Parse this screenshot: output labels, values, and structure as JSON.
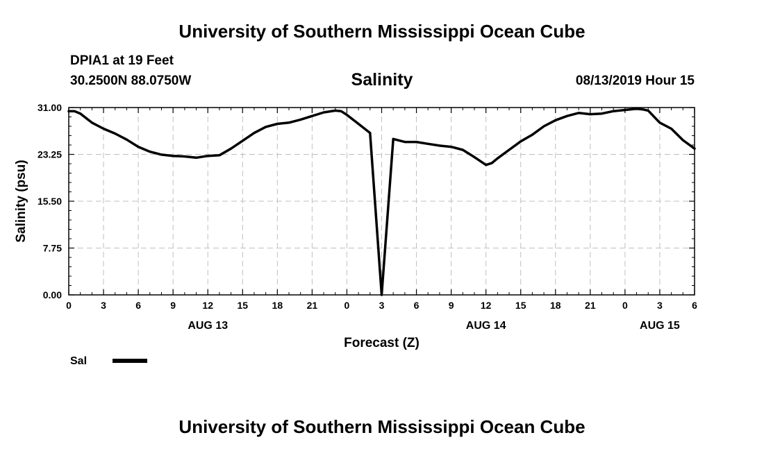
{
  "header": {
    "title": "University of Southern Mississippi Ocean Cube",
    "station": "DPIA1 at 19 Feet",
    "coordinates": "30.2500N 88.0750W",
    "variable": "Salinity",
    "timestamp": "08/13/2019 Hour 15"
  },
  "footer": {
    "title": "University of Southern Mississippi Ocean Cube"
  },
  "colors": {
    "line": "#000000",
    "grid": "#bfbfbf",
    "background": "#ffffff"
  },
  "chart_data": {
    "type": "line",
    "title": "Salinity",
    "xlabel": "Forecast (Z)",
    "ylabel": "Salinity (psu)",
    "xlim": [
      0,
      54
    ],
    "ylim": [
      0,
      31
    ],
    "x_tick_values": [
      0,
      3,
      6,
      9,
      12,
      15,
      18,
      21,
      24,
      27,
      30,
      33,
      36,
      39,
      42,
      45,
      48,
      51,
      54
    ],
    "x_tick_labels": [
      "0",
      "3",
      "6",
      "9",
      "12",
      "15",
      "18",
      "21",
      "0",
      "3",
      "6",
      "9",
      "12",
      "15",
      "18",
      "21",
      "0",
      "3",
      "6"
    ],
    "y_tick_values": [
      0,
      7.75,
      15.5,
      23.25,
      31
    ],
    "y_tick_labels": [
      "0.00",
      "7.75",
      "15.50",
      "23.25",
      "31.00"
    ],
    "date_labels": [
      {
        "x": 12,
        "label": "AUG 13"
      },
      {
        "x": 36,
        "label": "AUG 14"
      },
      {
        "x": 51,
        "label": "AUG 15"
      }
    ],
    "grid": true,
    "legend": {
      "position": "bottom-left",
      "entries": [
        {
          "name": "Sal"
        }
      ]
    },
    "series": [
      {
        "name": "Sal",
        "x": [
          0,
          0.5,
          1,
          2,
          3,
          4,
          5,
          6,
          7,
          8,
          9,
          10,
          11,
          12,
          13,
          14,
          15,
          16,
          17,
          18,
          19,
          20,
          21,
          22,
          23,
          23.5,
          24,
          25,
          26,
          27,
          28,
          29,
          30,
          31,
          32,
          33,
          34,
          35,
          36,
          36.5,
          37,
          38,
          39,
          40,
          41,
          42,
          43,
          44,
          45,
          46,
          47,
          48,
          49,
          49.5,
          50,
          51,
          52,
          53,
          54
        ],
        "values": [
          30.4,
          30.4,
          30.0,
          28.5,
          27.5,
          26.7,
          25.7,
          24.5,
          23.7,
          23.2,
          23.0,
          22.9,
          22.7,
          23.0,
          23.1,
          24.2,
          25.5,
          26.8,
          27.8,
          28.3,
          28.5,
          29.0,
          29.6,
          30.2,
          30.5,
          30.4,
          29.8,
          28.3,
          26.8,
          0.0,
          25.8,
          25.3,
          25.3,
          25.0,
          24.7,
          24.5,
          24.0,
          22.8,
          21.5,
          21.8,
          22.6,
          24.0,
          25.4,
          26.5,
          27.9,
          28.9,
          29.6,
          30.1,
          29.9,
          30.0,
          30.4,
          30.6,
          30.8,
          30.7,
          30.5,
          28.5,
          27.5,
          25.6,
          24.2
        ]
      }
    ]
  }
}
